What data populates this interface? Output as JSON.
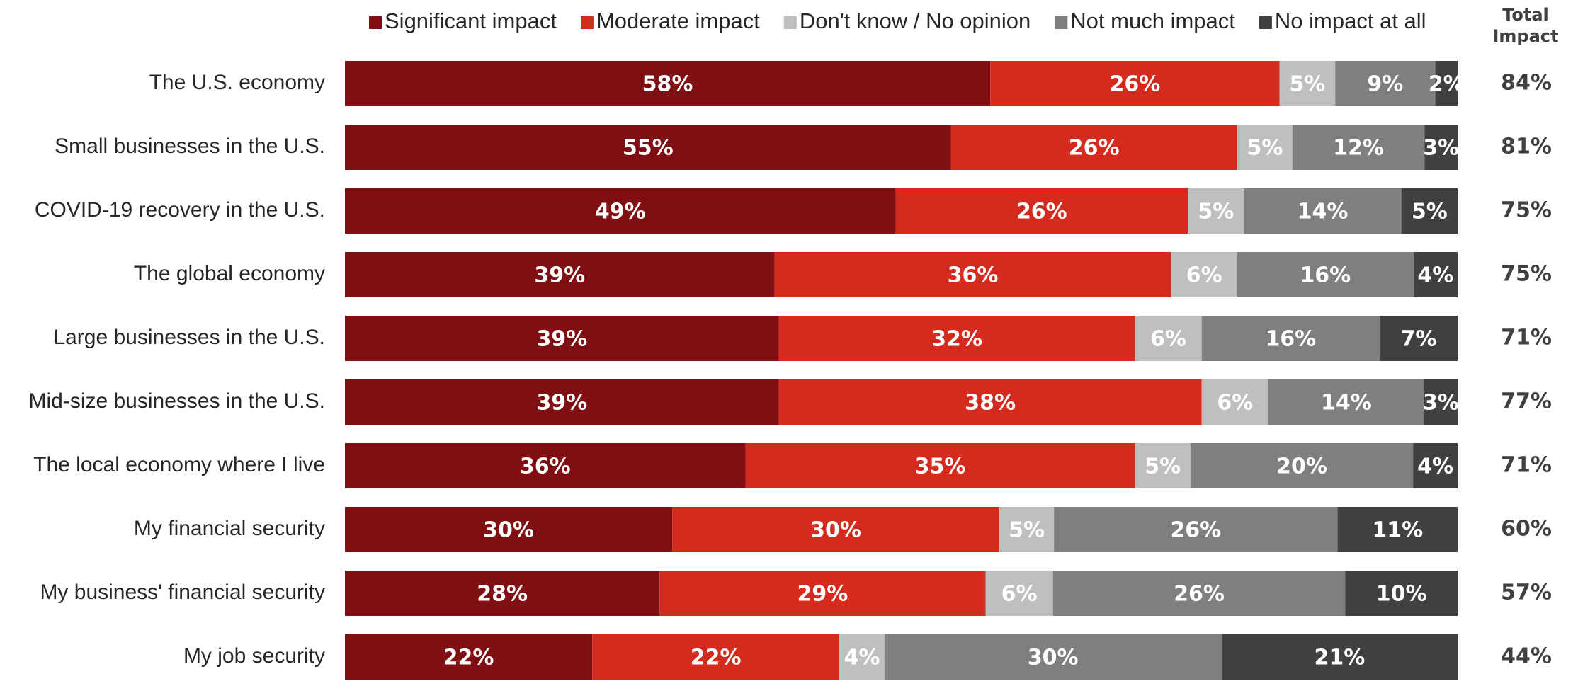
{
  "chart_data": {
    "type": "stacked_bar_100",
    "categories": [
      "The U.S. economy",
      "Small businesses in the U.S.",
      "COVID-19 recovery in the U.S.",
      "The global economy",
      "Large businesses in the U.S.",
      "Mid-size businesses in the U.S.",
      "The local economy where I live",
      "My financial security",
      "My business' financial security",
      "My job security"
    ],
    "series": [
      {
        "name": "Significant impact",
        "color": "#7f0f12",
        "values": [
          58,
          55,
          49,
          39,
          39,
          39,
          36,
          30,
          28,
          22
        ],
        "value_labels": [
          "58%",
          "55%",
          "49%",
          "39%",
          "39%",
          "39%",
          "36%",
          "30%",
          "28%",
          "22%"
        ]
      },
      {
        "name": "Moderate impact",
        "color": "#d52b1e",
        "values": [
          26,
          26,
          26,
          36,
          32,
          38,
          35,
          30,
          29,
          22
        ],
        "value_labels": [
          "26%",
          "26%",
          "26%",
          "36%",
          "32%",
          "38%",
          "35%",
          "30%",
          "29%",
          "22%"
        ]
      },
      {
        "name": "Don't know / No opinion",
        "color": "#bfbfbf",
        "values": [
          5,
          5,
          5,
          6,
          6,
          6,
          5,
          5,
          6,
          4
        ],
        "value_labels": [
          "5%",
          "5%",
          "5%",
          "6%",
          "6%",
          "6%",
          "5%",
          "5%",
          "6%",
          "4%"
        ]
      },
      {
        "name": "Not much impact",
        "color": "#7f7f7f",
        "values": [
          9,
          12,
          14,
          16,
          16,
          14,
          20,
          26,
          26,
          30
        ],
        "value_labels": [
          "9%",
          "12%",
          "14%",
          "16%",
          "16%",
          "14%",
          "20%",
          "26%",
          "26%",
          "30%"
        ]
      },
      {
        "name": "No impact at all",
        "color": "#404040",
        "values": [
          2,
          3,
          5,
          4,
          7,
          3,
          4,
          11,
          10,
          21
        ],
        "value_labels": [
          "2%",
          "3%",
          "5%",
          "4%",
          "7%",
          "3%",
          "4%",
          "11%",
          "10%",
          "21%"
        ]
      }
    ],
    "total_title": "Total Impact",
    "totals": [
      84,
      81,
      75,
      75,
      71,
      77,
      71,
      60,
      57,
      44
    ],
    "total_labels": [
      "84%",
      "81%",
      "75%",
      "75%",
      "71%",
      "77%",
      "71%",
      "60%",
      "57%",
      "44%"
    ],
    "legend": "top"
  }
}
